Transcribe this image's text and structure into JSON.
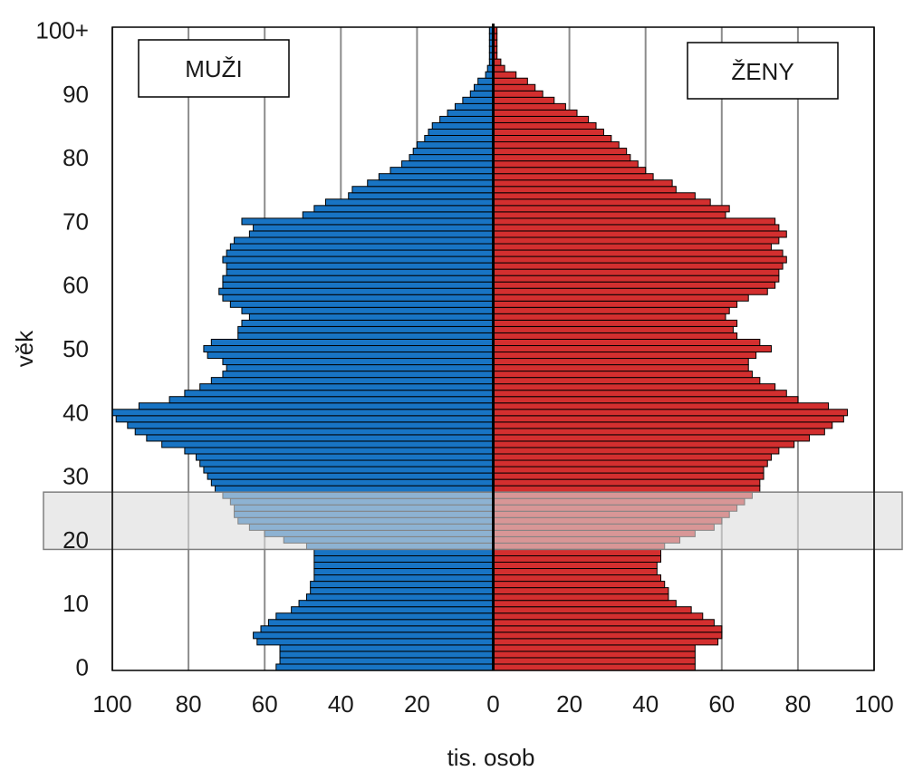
{
  "chart_data": {
    "type": "bar",
    "orientation": "horizontal",
    "subtype": "population-pyramid",
    "xlabel": "tis. osob",
    "ylabel": "věk",
    "xlim_per_side": [
      0,
      100
    ],
    "x_ticks": [
      "100",
      "80",
      "60",
      "40",
      "20",
      "0",
      "20",
      "40",
      "60",
      "80",
      "100"
    ],
    "y_ticks": [
      "0",
      "10",
      "20",
      "30",
      "40",
      "50",
      "60",
      "70",
      "80",
      "90",
      "100+"
    ],
    "grid": "vertical",
    "highlight_band": {
      "age_from": 19,
      "age_to": 27
    },
    "legend": {
      "left_label": "MUŽI",
      "right_label": "ŽENY"
    },
    "ages": [
      "0",
      "1",
      "2",
      "3",
      "4",
      "5",
      "6",
      "7",
      "8",
      "9",
      "10",
      "11",
      "12",
      "13",
      "14",
      "15",
      "16",
      "17",
      "18",
      "19",
      "20",
      "21",
      "22",
      "23",
      "24",
      "25",
      "26",
      "27",
      "28",
      "29",
      "30",
      "31",
      "32",
      "33",
      "34",
      "35",
      "36",
      "37",
      "38",
      "39",
      "40",
      "41",
      "42",
      "43",
      "44",
      "45",
      "46",
      "47",
      "48",
      "49",
      "50",
      "51",
      "52",
      "53",
      "54",
      "55",
      "56",
      "57",
      "58",
      "59",
      "60",
      "61",
      "62",
      "63",
      "64",
      "65",
      "66",
      "67",
      "68",
      "69",
      "70",
      "71",
      "72",
      "73",
      "74",
      "75",
      "76",
      "77",
      "78",
      "79",
      "80",
      "81",
      "82",
      "83",
      "84",
      "85",
      "86",
      "87",
      "88",
      "89",
      "90",
      "91",
      "92",
      "93",
      "94",
      "95",
      "96",
      "97",
      "98",
      "99",
      "100+"
    ],
    "series": [
      {
        "name": "MUŽI",
        "color": "#1874c4",
        "values": [
          57,
          56,
          56,
          56,
          62,
          63,
          61,
          59,
          57,
          53,
          51,
          49,
          48,
          48,
          47,
          47,
          47,
          47,
          47,
          49,
          55,
          60,
          64,
          67,
          68,
          68,
          69,
          71,
          73,
          74,
          75,
          76,
          77,
          78,
          81,
          87,
          91,
          94,
          96,
          99,
          100,
          93,
          85,
          81,
          77,
          74,
          71,
          70,
          71,
          75,
          76,
          74,
          67,
          67,
          66,
          64,
          66,
          69,
          71,
          72,
          71,
          71,
          70,
          70,
          71,
          70,
          69,
          68,
          64,
          63,
          66,
          50,
          47,
          44,
          38,
          37,
          33,
          30,
          27,
          24,
          22,
          21,
          20,
          18,
          17,
          16,
          14,
          12,
          10,
          8,
          6,
          5,
          4,
          2,
          1.5,
          1,
          1,
          1,
          1,
          1,
          1
        ]
      },
      {
        "name": "ŽENY",
        "color": "#d32f2f",
        "values": [
          53,
          53,
          53,
          53,
          59,
          60,
          60,
          58,
          55,
          52,
          48,
          46,
          46,
          45,
          44,
          43,
          43,
          44,
          44,
          45,
          49,
          53,
          58,
          60,
          62,
          64,
          66,
          68,
          70,
          70,
          71,
          71,
          72,
          73,
          75,
          79,
          83,
          87,
          89,
          92,
          93,
          88,
          80,
          77,
          74,
          70,
          68,
          67,
          67,
          69,
          73,
          70,
          64,
          63,
          64,
          61,
          62,
          64,
          67,
          72,
          74,
          75,
          75,
          76,
          77,
          76,
          73,
          75,
          77,
          75,
          74,
          61,
          62,
          57,
          53,
          48,
          47,
          42,
          40,
          38,
          36,
          35,
          33,
          31,
          29,
          27,
          25,
          22,
          19,
          16,
          13,
          11,
          9,
          6,
          3,
          2,
          1,
          1,
          1,
          1,
          1
        ]
      }
    ]
  }
}
